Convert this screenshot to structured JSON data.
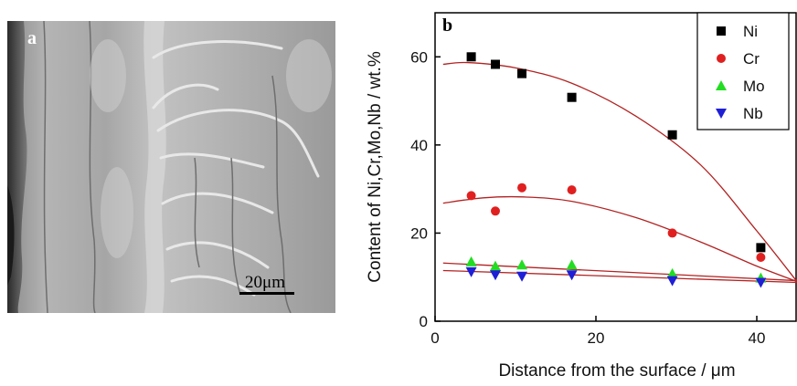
{
  "micrograph": {
    "panel_label": "a",
    "scale_bar_label": "20μm"
  },
  "chart_data": {
    "type": "scatter",
    "panel_label": "b",
    "xlabel": "Distance from the surface / μm",
    "ylabel": "Content of Ni,Cr,Mo,Nb / wt.%",
    "xlim": [
      0,
      45
    ],
    "ylim": [
      0,
      70
    ],
    "x_ticks": [
      0,
      20,
      40
    ],
    "y_ticks": [
      0,
      20,
      40,
      60
    ],
    "legend_position": "top-right",
    "fit_color": "#b22222",
    "series": [
      {
        "name": "Ni",
        "marker": "square",
        "color": "#000000",
        "points": [
          [
            4.5,
            60
          ],
          [
            7.5,
            58.3
          ],
          [
            10.8,
            56.2
          ],
          [
            17,
            50.8
          ],
          [
            29.5,
            42.3
          ],
          [
            40.5,
            16.7
          ]
        ],
        "fit": [
          [
            1,
            58.3
          ],
          [
            4,
            58.7
          ],
          [
            10,
            57.5
          ],
          [
            17,
            54
          ],
          [
            25,
            46.5
          ],
          [
            33,
            35.5
          ],
          [
            40,
            20.5
          ],
          [
            45,
            9
          ]
        ]
      },
      {
        "name": "Cr",
        "marker": "circle",
        "color": "#e02020",
        "points": [
          [
            4.5,
            28.5
          ],
          [
            7.5,
            25
          ],
          [
            10.8,
            30.3
          ],
          [
            17,
            29.8
          ],
          [
            29.5,
            20
          ],
          [
            40.5,
            14.5
          ]
        ],
        "fit": [
          [
            1,
            26.8
          ],
          [
            6,
            28
          ],
          [
            11,
            28.2
          ],
          [
            17,
            27.2
          ],
          [
            25,
            23.5
          ],
          [
            33,
            18
          ],
          [
            40,
            12.5
          ],
          [
            45,
            9
          ]
        ]
      },
      {
        "name": "Mo",
        "marker": "triangle-up",
        "color": "#22dd22",
        "points": [
          [
            4.5,
            13.5
          ],
          [
            7.5,
            12.5
          ],
          [
            10.8,
            12.8
          ],
          [
            17,
            12.8
          ],
          [
            29.5,
            10.8
          ],
          [
            40.5,
            9.8
          ]
        ],
        "fit": [
          [
            1,
            13.2
          ],
          [
            45,
            9.2
          ]
        ]
      },
      {
        "name": "Nb",
        "marker": "triangle-down",
        "color": "#1f1fd6",
        "points": [
          [
            4.5,
            11.2
          ],
          [
            7.5,
            10.5
          ],
          [
            10.8,
            10.2
          ],
          [
            17,
            10.5
          ],
          [
            29.5,
            9.2
          ],
          [
            40.5,
            8.8
          ]
        ],
        "fit": [
          [
            1,
            11.5
          ],
          [
            45,
            8.8
          ]
        ]
      }
    ]
  }
}
